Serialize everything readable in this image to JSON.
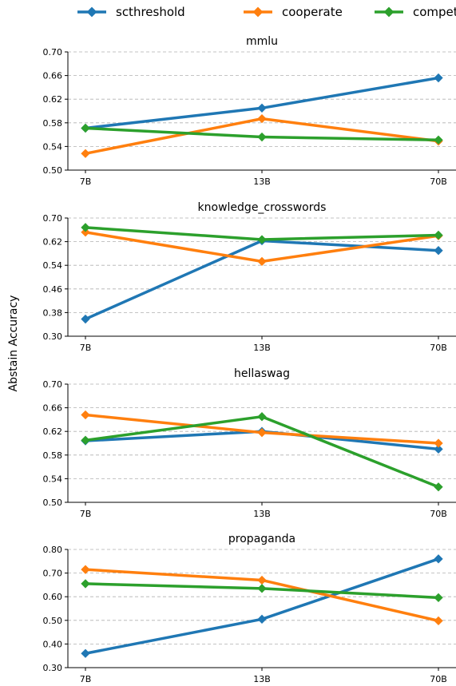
{
  "figure": {
    "ylabel": "Abstain Accuracy"
  },
  "legend": [
    {
      "name": "scthreshold",
      "color": "#1f77b4"
    },
    {
      "name": "cooperate",
      "color": "#ff7f0e"
    },
    {
      "name": "compete",
      "color": "#2ca02c"
    }
  ],
  "chart_data": [
    {
      "type": "line",
      "title": "mmlu",
      "categories": [
        "7B",
        "13B",
        "70B"
      ],
      "ylim": [
        0.5,
        0.7
      ],
      "yticks": [
        "0.50",
        "0.54",
        "0.58",
        "0.62",
        "0.66",
        "0.70"
      ],
      "grid": "y-dashed",
      "series": [
        {
          "name": "scthreshold",
          "color": "#1f77b4",
          "values": [
            0.571,
            0.605,
            0.656
          ]
        },
        {
          "name": "cooperate",
          "color": "#ff7f0e",
          "values": [
            0.528,
            0.587,
            0.549
          ]
        },
        {
          "name": "compete",
          "color": "#2ca02c",
          "values": [
            0.571,
            0.556,
            0.551
          ]
        }
      ]
    },
    {
      "type": "line",
      "title": "knowledge_crosswords",
      "categories": [
        "7B",
        "13B",
        "70B"
      ],
      "ylim": [
        0.3,
        0.7
      ],
      "yticks": [
        "0.30",
        "0.38",
        "0.46",
        "0.54",
        "0.62",
        "0.70"
      ],
      "grid": "y-dashed",
      "series": [
        {
          "name": "scthreshold",
          "color": "#1f77b4",
          "values": [
            0.358,
            0.623,
            0.59
          ]
        },
        {
          "name": "cooperate",
          "color": "#ff7f0e",
          "values": [
            0.652,
            0.553,
            0.64
          ]
        },
        {
          "name": "compete",
          "color": "#2ca02c",
          "values": [
            0.668,
            0.627,
            0.642
          ]
        }
      ]
    },
    {
      "type": "line",
      "title": "hellaswag",
      "categories": [
        "7B",
        "13B",
        "70B"
      ],
      "ylim": [
        0.5,
        0.7
      ],
      "yticks": [
        "0.50",
        "0.54",
        "0.58",
        "0.62",
        "0.66",
        "0.70"
      ],
      "grid": "y-dashed",
      "series": [
        {
          "name": "scthreshold",
          "color": "#1f77b4",
          "values": [
            0.604,
            0.62,
            0.59
          ]
        },
        {
          "name": "cooperate",
          "color": "#ff7f0e",
          "values": [
            0.648,
            0.618,
            0.6
          ]
        },
        {
          "name": "compete",
          "color": "#2ca02c",
          "values": [
            0.605,
            0.645,
            0.526
          ]
        }
      ]
    },
    {
      "type": "line",
      "title": "propaganda",
      "categories": [
        "7B",
        "13B",
        "70B"
      ],
      "ylim": [
        0.3,
        0.8
      ],
      "yticks": [
        "0.30",
        "0.40",
        "0.50",
        "0.60",
        "0.70",
        "0.80"
      ],
      "grid": "y-dashed",
      "series": [
        {
          "name": "scthreshold",
          "color": "#1f77b4",
          "values": [
            0.36,
            0.505,
            0.76
          ]
        },
        {
          "name": "cooperate",
          "color": "#ff7f0e",
          "values": [
            0.715,
            0.67,
            0.498
          ]
        },
        {
          "name": "compete",
          "color": "#2ca02c",
          "values": [
            0.655,
            0.635,
            0.596
          ]
        }
      ]
    }
  ]
}
